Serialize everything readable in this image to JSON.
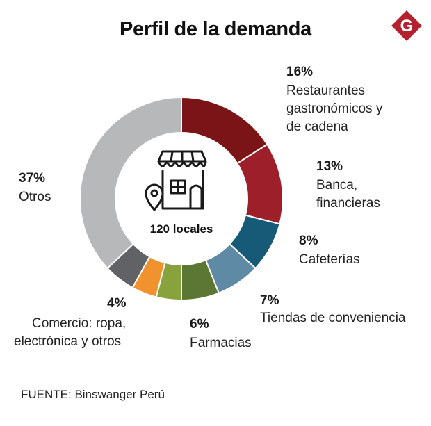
{
  "header": {
    "title": "Perfil de la demanda",
    "logo_letter": "G",
    "logo_color": "#b5202e"
  },
  "center": {
    "label": "120 locales",
    "icon": "store-icon"
  },
  "footer": {
    "source": "FUENTE: Binswanger Perú"
  },
  "chart_data": {
    "type": "pie",
    "title": "Perfil de la demanda",
    "unit": "%",
    "total_label": "120 locales",
    "slices": [
      {
        "pct_label": "16%",
        "value": 16,
        "lines": [
          "Restaurantes",
          "gastronómicos y",
          "de cadena"
        ],
        "color": "#7a1416"
      },
      {
        "pct_label": "13%",
        "value": 13,
        "lines": [
          "Banca,",
          "financieras"
        ],
        "color": "#9c1f2a"
      },
      {
        "pct_label": "8%",
        "value": 8,
        "lines": [
          "Cafeterías"
        ],
        "color": "#175a78"
      },
      {
        "pct_label": "7%",
        "value": 7,
        "lines": [
          "Tiendas de conveniencia"
        ],
        "color": "#5f8aa6"
      },
      {
        "pct_label": "6%",
        "value": 6,
        "lines": [
          "Farmacias"
        ],
        "color": "#5c7634"
      },
      {
        "pct_label": "",
        "value": 4,
        "lines": [],
        "color": "#88a33e"
      },
      {
        "pct_label": "4%",
        "value": 4,
        "lines": [
          "Comercio: ropa,",
          "electrónica y otros"
        ],
        "color": "#f0922e"
      },
      {
        "pct_label": "",
        "value": 5,
        "lines": [],
        "color": "#606266"
      },
      {
        "pct_label": "37%",
        "value": 37,
        "lines": [
          "Otros"
        ],
        "color": "#b7b8ba"
      }
    ]
  }
}
